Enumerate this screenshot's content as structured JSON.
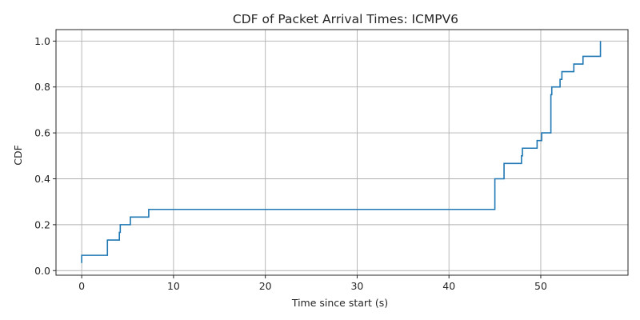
{
  "chart_data": {
    "type": "line",
    "step": "post",
    "title": "CDF of Packet Arrival Times: ICMPV6",
    "xlabel": "Time since start (s)",
    "ylabel": "CDF",
    "xlim": [
      -2.8,
      59.5
    ],
    "ylim": [
      -0.02,
      1.05
    ],
    "xticks": [
      0,
      10,
      20,
      30,
      40,
      50
    ],
    "xtick_labels": [
      "0",
      "10",
      "20",
      "30",
      "40",
      "50"
    ],
    "yticks": [
      0.0,
      0.2,
      0.4,
      0.6,
      0.8,
      1.0
    ],
    "ytick_labels": [
      "0.0",
      "0.2",
      "0.4",
      "0.6",
      "0.8",
      "1.0"
    ],
    "grid": true,
    "series": [
      {
        "color": "#1f77b4",
        "x": [
          0.0,
          0.0,
          2.8,
          2.8,
          4.1,
          4.2,
          5.3,
          7.3,
          45.0,
          45.0,
          46.0,
          47.9,
          48.0,
          49.6,
          50.1,
          51.1,
          51.2,
          52.1,
          52.3,
          53.6,
          54.6,
          56.5
        ],
        "y": [
          0.0333,
          0.0667,
          0.1,
          0.1333,
          0.1667,
          0.2,
          0.2333,
          0.2667,
          0.3667,
          0.4,
          0.4667,
          0.5,
          0.5333,
          0.5667,
          0.6,
          0.7667,
          0.8,
          0.8333,
          0.8667,
          0.9,
          0.9333,
          1.0
        ]
      }
    ]
  }
}
